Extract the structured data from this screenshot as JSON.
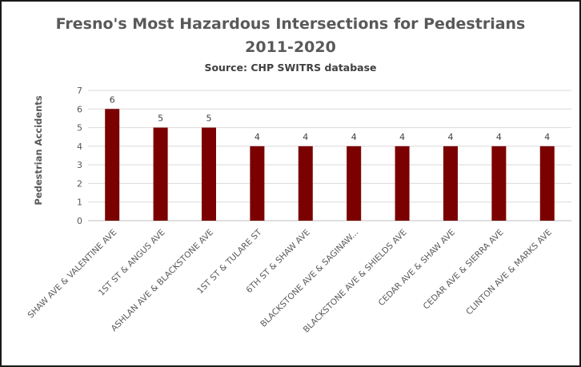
{
  "chart_data": {
    "type": "bar",
    "title": "Fresno's Most Hazardous Intersections for Pedestrians",
    "title_line2": "2011-2020",
    "subtitle": "Source: CHP SWITRS database",
    "xlabel": "",
    "ylabel": "Pedestrian Accidents",
    "ylim": [
      0,
      7
    ],
    "yticks": [
      "0",
      "1",
      "2",
      "3",
      "4",
      "5",
      "6",
      "7"
    ],
    "grid": true,
    "legend": "none",
    "bar_color": "#7b0000",
    "categories": [
      "SHAW AVE & VALENTINE AVE",
      "1ST ST & ANGUS AVE",
      "ASHLAN AVE & BLACKSTONE AVE",
      "1ST ST & TULARE ST",
      "6TH ST & SHAW AVE",
      "BLACKSTONE AVE & SAGINAW...",
      "BLACKSTONE AVE & SHIELDS AVE",
      "CEDAR AVE & SHAW AVE",
      "CEDAR AVE & SIERRA AVE",
      "CLINTON AVE & MARKS AVE"
    ],
    "values": [
      6,
      5,
      5,
      4,
      4,
      4,
      4,
      4,
      4,
      4
    ]
  }
}
